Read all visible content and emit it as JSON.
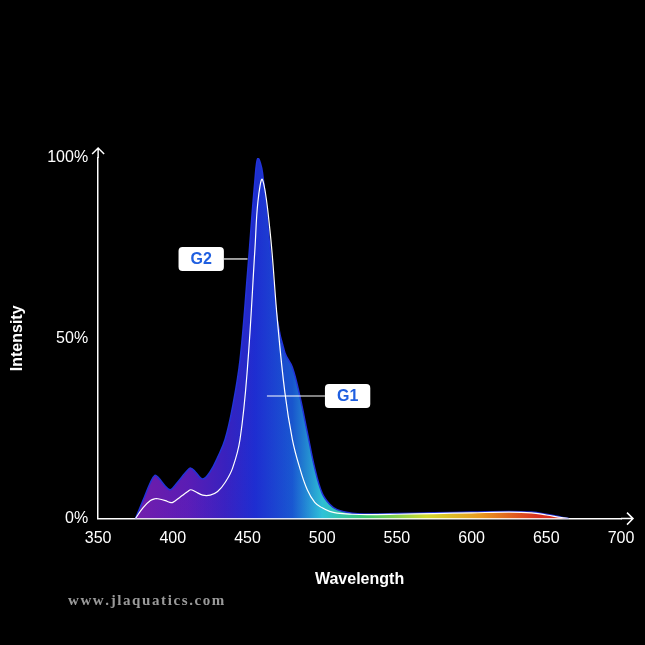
{
  "chart_data": {
    "type": "line",
    "x_label": "Wavelength",
    "y_label": "Intensity",
    "x": [
      375,
      380,
      385,
      388,
      390,
      395,
      398,
      400,
      405,
      410,
      412,
      415,
      420,
      425,
      430,
      435,
      440,
      445,
      450,
      455,
      457,
      460,
      465,
      470,
      475,
      480,
      485,
      490,
      495,
      500,
      505,
      510,
      520,
      530,
      550,
      575,
      600,
      625,
      640,
      650,
      660,
      665
    ],
    "series": [
      {
        "name": "G1",
        "color": "#ffffff",
        "values": [
          0,
          3,
          5,
          5.5,
          5.5,
          5,
          4.5,
          4.5,
          6,
          7.5,
          8,
          7.5,
          6.5,
          6.5,
          7.5,
          10,
          14,
          22,
          42,
          75,
          88,
          94,
          80,
          55,
          35,
          22,
          14,
          8,
          4.5,
          3,
          2,
          1.5,
          1.2,
          1.1,
          1.2,
          1.4,
          1.6,
          1.8,
          1.6,
          1,
          0.3,
          0
        ]
      },
      {
        "name": "G2",
        "color": "#2233d8",
        "values": [
          0,
          5,
          10,
          12,
          11.5,
          9,
          8,
          8.5,
          11,
          13.5,
          14,
          13,
          11,
          13,
          17,
          22,
          31,
          44,
          68,
          94,
          100,
          96,
          75,
          55,
          46,
          42,
          34,
          24,
          14,
          7,
          4,
          2.5,
          1.5,
          1.3,
          1.4,
          1.6,
          1.8,
          2,
          1.8,
          1.2,
          0.4,
          0
        ]
      }
    ],
    "annotations": [
      {
        "text": "G1",
        "x": 517,
        "y": 34,
        "target_x": 463,
        "target_y": 34
      },
      {
        "text": "G2",
        "x": 419,
        "y": 72,
        "target_x": 450,
        "target_y": 72
      }
    ],
    "watermark": "www.jlaquatics.com",
    "xlim": [
      350,
      700
    ],
    "xticks": [
      350,
      400,
      450,
      500,
      550,
      600,
      650,
      700
    ],
    "ylim": [
      0,
      100
    ],
    "yticks": [
      {
        "value": 0,
        "label": "0%"
      },
      {
        "value": 50,
        "label": "50%"
      },
      {
        "value": 100,
        "label": "100%"
      }
    ],
    "grid": false
  }
}
